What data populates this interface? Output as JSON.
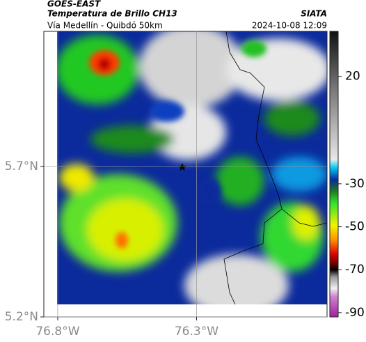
{
  "header": {
    "satellite": "GOES-EAST",
    "product": "Temperatura de Brillo CH13",
    "route": "Vía Medellín - Quibdó 50km",
    "source": "SIATA",
    "timestamp": "2024-10-08 12:09"
  },
  "map": {
    "latlim": [
      5.2,
      6.15
    ],
    "lonlim": [
      -76.85,
      -75.83
    ],
    "lat_ticks": [
      {
        "value": 5.7,
        "label": "5.7°N"
      },
      {
        "value": 5.2,
        "label": "5.2°N"
      }
    ],
    "lon_ticks": [
      {
        "value": -76.8,
        "label": "76.8°W"
      },
      {
        "value": -76.3,
        "label": "76.3°W"
      }
    ],
    "colorbar": {
      "lim": [
        -92,
        41
      ],
      "ticks": [
        20,
        -30,
        -50,
        -70,
        -90
      ]
    }
  }
}
